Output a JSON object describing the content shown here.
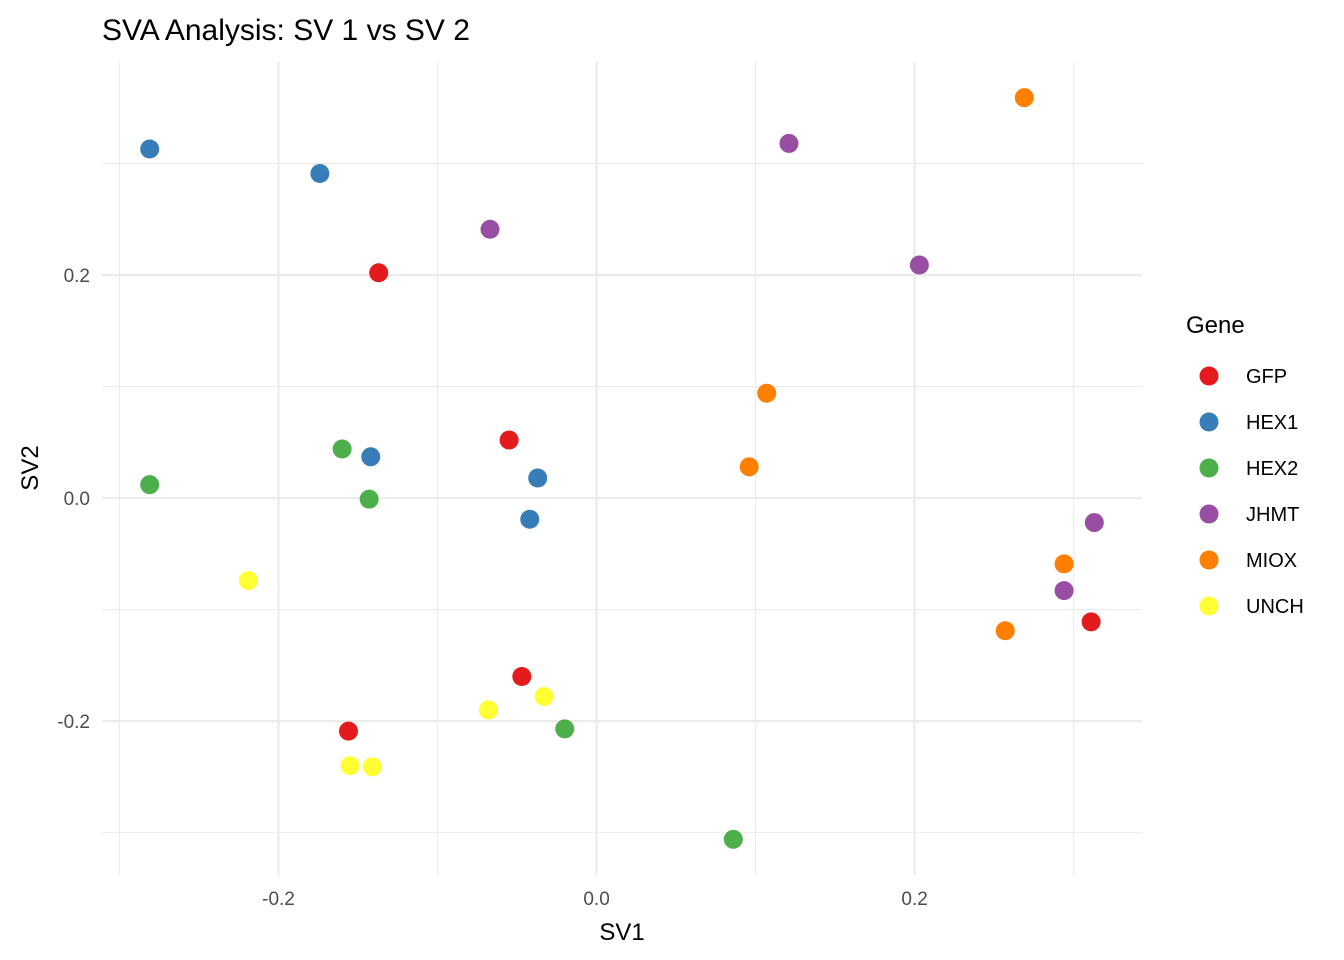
{
  "chart_data": {
    "type": "scatter",
    "title": "SVA Analysis: SV 1  vs SV 2",
    "xlabel": "SV1",
    "ylabel": "SV2",
    "xlim": [
      -0.311,
      0.343
    ],
    "ylim": [
      -0.338,
      0.391
    ],
    "xticks": [
      -0.2,
      0.0,
      0.2
    ],
    "xtick_labels": [
      "-0.2",
      "0.0",
      "0.2"
    ],
    "yticks": [
      -0.2,
      0.0,
      0.2
    ],
    "ytick_labels": [
      "-0.2",
      "0.0",
      "0.2"
    ],
    "grid": true,
    "legend": {
      "title": "Gene",
      "placement": "right"
    },
    "series": [
      {
        "name": "GFP",
        "color": "#E41A1C",
        "points": [
          [
            -0.137,
            0.202
          ],
          [
            -0.055,
            0.052
          ],
          [
            -0.047,
            -0.16
          ],
          [
            -0.156,
            -0.209
          ],
          [
            0.311,
            -0.111
          ]
        ]
      },
      {
        "name": "HEX1",
        "color": "#377EB8",
        "points": [
          [
            -0.281,
            0.313
          ],
          [
            -0.174,
            0.291
          ],
          [
            -0.142,
            0.037
          ],
          [
            -0.037,
            0.018
          ],
          [
            -0.042,
            -0.019
          ]
        ]
      },
      {
        "name": "HEX2",
        "color": "#4DAF4A",
        "points": [
          [
            -0.16,
            0.044
          ],
          [
            -0.281,
            0.012
          ],
          [
            -0.143,
            -0.001
          ],
          [
            -0.02,
            -0.207
          ],
          [
            0.086,
            -0.306
          ]
        ]
      },
      {
        "name": "JHMT",
        "color": "#984EA3",
        "points": [
          [
            -0.067,
            0.241
          ],
          [
            0.121,
            0.318
          ],
          [
            0.203,
            0.209
          ],
          [
            0.313,
            -0.022
          ],
          [
            0.294,
            -0.083
          ]
        ]
      },
      {
        "name": "MIOX",
        "color": "#FF7F00",
        "points": [
          [
            0.269,
            0.359
          ],
          [
            0.107,
            0.094
          ],
          [
            0.096,
            0.028
          ],
          [
            0.294,
            -0.059
          ],
          [
            0.257,
            -0.119
          ]
        ]
      },
      {
        "name": "UNCH",
        "color": "#FFFF33",
        "points": [
          [
            -0.219,
            -0.074
          ],
          [
            -0.068,
            -0.19
          ],
          [
            -0.033,
            -0.178
          ],
          [
            -0.155,
            -0.24
          ],
          [
            -0.141,
            -0.241
          ]
        ]
      }
    ]
  }
}
